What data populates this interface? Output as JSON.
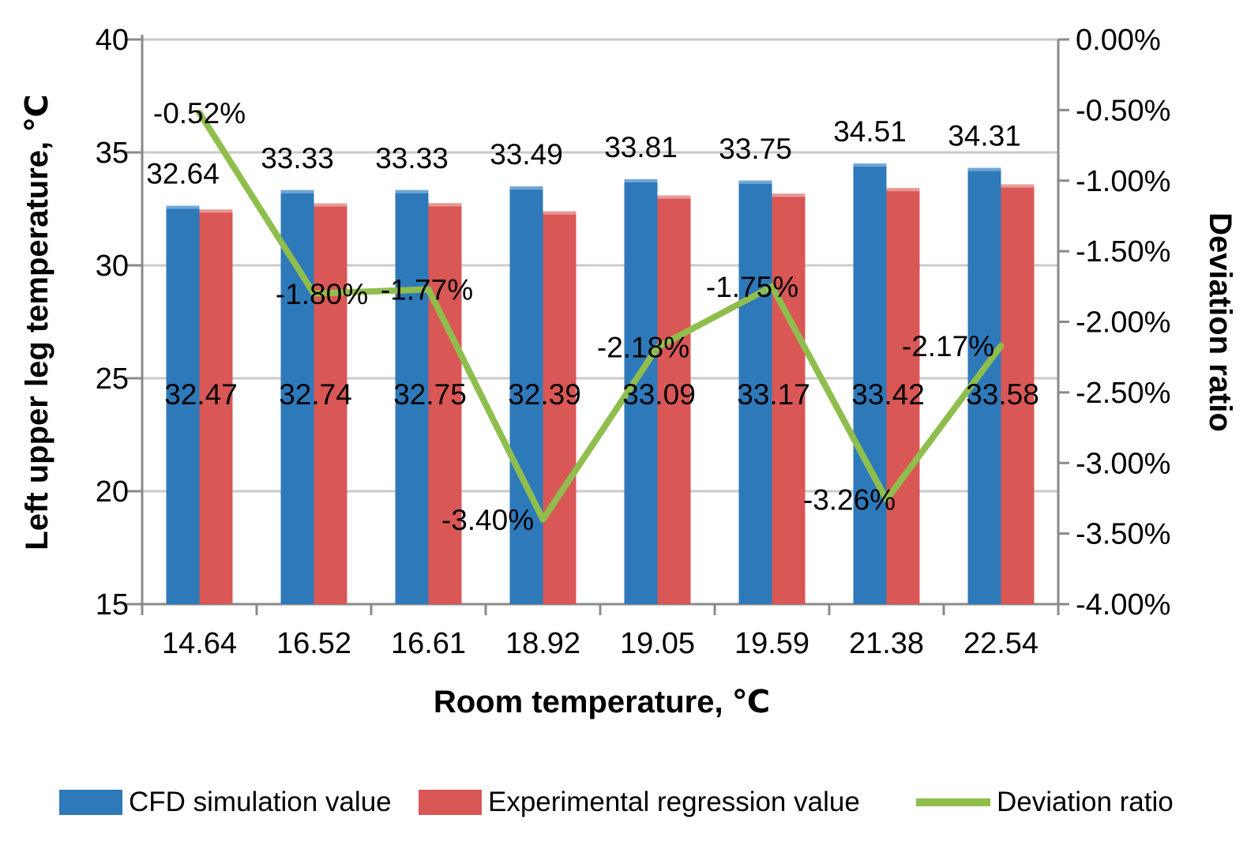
{
  "chart_data": {
    "type": "bar",
    "subtype": "grouped-bars-with-line-on-secondary-axis",
    "title": "",
    "categories": [
      "14.64",
      "16.52",
      "16.61",
      "18.92",
      "19.05",
      "19.59",
      "21.38",
      "22.54"
    ],
    "series": [
      {
        "name": "CFD simulation value",
        "type": "bar",
        "axis": "left",
        "color": "#2E79B9",
        "top_edge_color": "#6FA6D8",
        "values": [
          32.64,
          33.33,
          33.33,
          33.49,
          33.81,
          33.75,
          34.51,
          34.31
        ],
        "labels": [
          "32.64",
          "33.33",
          "33.33",
          "33.49",
          "33.81",
          "33.75",
          "34.51",
          "34.31"
        ]
      },
      {
        "name": "Experimental regression value",
        "type": "bar",
        "axis": "left",
        "color": "#D95755",
        "top_edge_color": "#E79896",
        "values": [
          32.47,
          32.74,
          32.75,
          32.39,
          33.09,
          33.17,
          33.42,
          33.58
        ],
        "labels": [
          "32.47",
          "32.74",
          "32.75",
          "32.39",
          "33.09",
          "33.17",
          "33.42",
          "33.58"
        ]
      },
      {
        "name": "Deviation ratio",
        "type": "line",
        "axis": "right",
        "color": "#8FBE4D",
        "values": [
          -0.52,
          -1.8,
          -1.77,
          -3.4,
          -2.18,
          -1.75,
          -3.26,
          -2.17
        ],
        "labels": [
          "-0.52%",
          "-1.80%",
          "-1.77%",
          "-3.40%",
          "-2.18%",
          "-1.75%",
          "-3.26%",
          "-2.17%"
        ]
      }
    ],
    "xlabel": "Room temperature, ℃",
    "ylabel_left": "Left upper leg temperature, ℃",
    "ylabel_right": "Deviation ratio",
    "left_axis": {
      "min": 15,
      "max": 40,
      "tick_values": [
        40,
        35,
        30,
        25,
        20,
        15
      ],
      "tick_labels": [
        "40",
        "35",
        "30",
        "25",
        "20",
        "15"
      ]
    },
    "right_axis": {
      "min": -4,
      "max": 0,
      "tick_labels": [
        "0.00%",
        "-0.50%",
        "-1.00%",
        "-1.50%",
        "-2.00%",
        "-2.50%",
        "-3.00%",
        "-3.50%",
        "-4.00%"
      ]
    },
    "grid": true,
    "legend_position": "bottom",
    "colors": {
      "grid": "#CACACA",
      "axis": "#8A8A8A",
      "text": "#000000",
      "background": "#FFFFFF"
    }
  }
}
